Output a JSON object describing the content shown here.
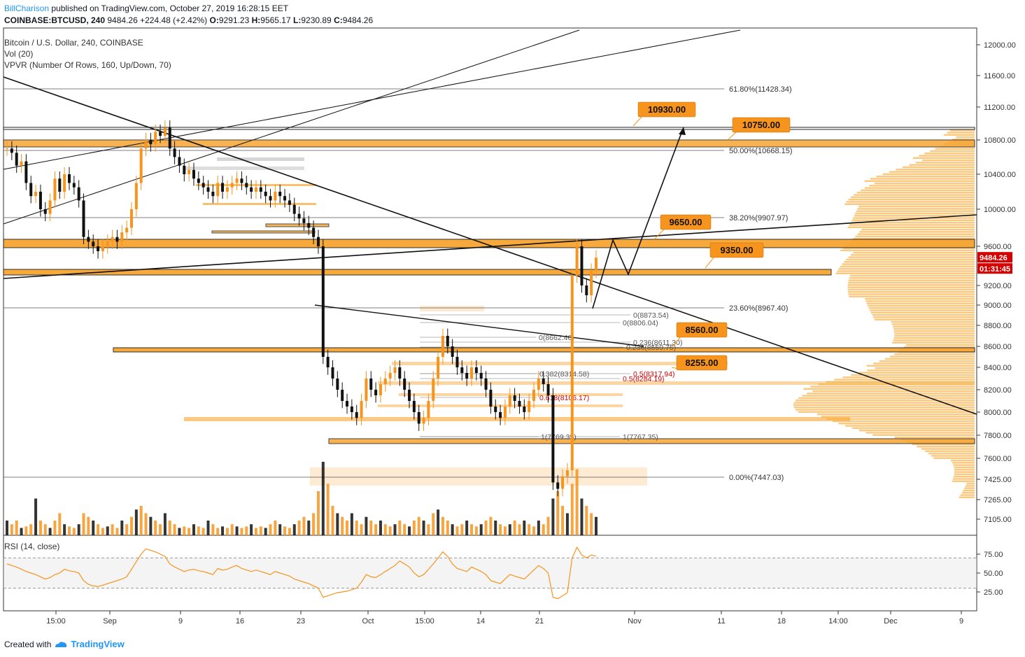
{
  "header": {
    "author": "BillCharison",
    "published": " published on TradingView.com, October 27, 2019 16:28:15 EET",
    "symbol_line": "COINBASE:BTCUSD, 240",
    "last": "9484.26",
    "change": "+224.48 (+2.42%)",
    "o_label": "O:",
    "o": "9291.23",
    "h_label": "H:",
    "h": "9565.17",
    "l_label": "L:",
    "l": "9230.89",
    "c_label": "C:",
    "c": "9484.26"
  },
  "legend": {
    "title": "Bitcoin / U.S. Dollar, 240, COINBASE",
    "vol": "Vol (20)",
    "vpvr": "VPVR (Number Of Rows, 160, Up/Down, 70)",
    "rsi": "RSI (14, close)"
  },
  "footer": {
    "created": "Created with",
    "brand": "TradingView"
  },
  "colors": {
    "accent": "#f7941d",
    "band": "#f7a531",
    "bandLight": "#fde3c0",
    "price_tag": "#d50000",
    "author": "#2196f3"
  },
  "chart_data": {
    "type": "candlestick",
    "x_ticks": [
      "15:00",
      "Sep",
      "9",
      "16",
      "23",
      "Oct",
      "15:00",
      "14",
      "21",
      "Nov",
      "11",
      "18",
      "14:00",
      "Dec",
      "9"
    ],
    "y_ticks": [
      "12000.00",
      "11600.00",
      "11200.00",
      "10800.00",
      "10400.00",
      "10000.00",
      "9600.00",
      "9200.00",
      "9000.00",
      "8800.00",
      "8600.00",
      "8400.00",
      "8200.00",
      "8000.00",
      "7800.00",
      "7600.00",
      "7425.00",
      "7265.00",
      "7105.00"
    ],
    "rsi_ticks": [
      "75.00",
      "50.00",
      "25.00"
    ],
    "current_price": "9484.26",
    "countdown": "01:31:45",
    "target_labels": [
      "10930.00",
      "10750.00",
      "9650.00",
      "9350.00",
      "8560.00",
      "8255.00"
    ],
    "fib_labels": [
      "61.80%(11428.34)",
      "50.00%(10668.15)",
      "38.20%(9907.97)",
      "23.60%(8967.40)",
      "0.00%(7447.03)"
    ],
    "small_fib_labels": [
      "0(8873.54)",
      "0(8806.04)",
      "0(8662.40)",
      "0.236(8611.30)",
      "0.236(8559.75)",
      "0.382(8314.58)",
      "0.5(8317.94)",
      "0.5(8284.19)",
      "0.618(8106.17)",
      "1(7769.35)",
      "1(7767.35)"
    ],
    "price_axis": {
      "min": 7000,
      "max": 12200
    },
    "series": [
      {
        "name": "Close",
        "values": [
          10700,
          10650,
          10500,
          10550,
          10300,
          10150,
          10200,
          10000,
          9950,
          10100,
          10350,
          10200,
          10400,
          10300,
          10250,
          10100,
          9700,
          9650,
          9600,
          9550,
          9600,
          9650,
          9700,
          9650,
          9750,
          9800,
          10000,
          10300,
          10700,
          10800,
          10750,
          10900,
          10850,
          10950,
          10700,
          10600,
          10500,
          10400,
          10450,
          10350,
          10300,
          10250,
          10200,
          10150,
          10300,
          10200,
          10250,
          10300,
          10350,
          10300,
          10250,
          10200,
          10250,
          10200,
          10150,
          10100,
          10200,
          10150,
          10100,
          10050,
          9950,
          9900,
          9850,
          9800,
          9700,
          9600,
          8500,
          8400,
          8300,
          8200,
          8100,
          8050,
          8000,
          7950,
          8100,
          8300,
          8200,
          8150,
          8250,
          8300,
          8350,
          8400,
          8300,
          8200,
          8100,
          8000,
          7900,
          7950,
          8100,
          8300,
          8500,
          8700,
          8600,
          8500,
          8400,
          8350,
          8300,
          8400,
          8350,
          8300,
          8200,
          8050,
          8000,
          7950,
          8050,
          8150,
          8100,
          8050,
          8000,
          8100,
          8200,
          8300,
          8250,
          8150,
          7400,
          7350,
          7450,
          7500,
          9300,
          9600,
          9200,
          9100,
          9350,
          9484
        ]
      }
    ],
    "rsi": [
      62,
      60,
      58,
      55,
      52,
      50,
      48,
      45,
      42,
      44,
      48,
      50,
      55,
      53,
      52,
      50,
      40,
      35,
      33,
      32,
      34,
      36,
      38,
      40,
      42,
      45,
      55,
      65,
      75,
      82,
      80,
      78,
      75,
      72,
      62,
      58,
      55,
      52,
      54,
      55,
      53,
      52,
      50,
      48,
      56,
      54,
      55,
      58,
      60,
      56,
      54,
      52,
      54,
      52,
      50,
      48,
      52,
      50,
      48,
      46,
      42,
      40,
      38,
      36,
      33,
      30,
      18,
      20,
      22,
      24,
      25,
      26,
      28,
      30,
      38,
      48,
      45,
      44,
      48,
      52,
      56,
      60,
      66,
      62,
      58,
      50,
      45,
      48,
      55,
      62,
      70,
      78,
      72,
      62,
      56,
      54,
      52,
      58,
      55,
      52,
      48,
      40,
      38,
      36,
      42,
      48,
      46,
      44,
      42,
      48,
      54,
      60,
      56,
      50,
      18,
      16,
      20,
      24,
      70,
      84,
      74,
      70,
      74,
      72
    ],
    "volume": [
      0.2,
      0.15,
      0.2,
      0.1,
      0.12,
      0.15,
      0.5,
      0.2,
      0.15,
      0.1,
      0.2,
      0.3,
      0.15,
      0.12,
      0.1,
      0.15,
      0.3,
      0.25,
      0.2,
      0.15,
      0.1,
      0.12,
      0.15,
      0.1,
      0.2,
      0.15,
      0.25,
      0.35,
      0.4,
      0.3,
      0.25,
      0.2,
      0.15,
      0.3,
      0.2,
      0.15,
      0.1,
      0.12,
      0.1,
      0.15,
      0.12,
      0.1,
      0.2,
      0.15,
      0.1,
      0.12,
      0.1,
      0.15,
      0.12,
      0.1,
      0.12,
      0.15,
      0.1,
      0.12,
      0.1,
      0.15,
      0.2,
      0.15,
      0.12,
      0.1,
      0.15,
      0.2,
      0.25,
      0.2,
      0.3,
      0.6,
      1.0,
      0.7,
      0.4,
      0.3,
      0.25,
      0.2,
      0.3,
      0.2,
      0.15,
      0.25,
      0.2,
      0.15,
      0.2,
      0.15,
      0.12,
      0.15,
      0.2,
      0.15,
      0.12,
      0.2,
      0.25,
      0.2,
      0.15,
      0.3,
      0.35,
      0.25,
      0.2,
      0.15,
      0.12,
      0.15,
      0.2,
      0.15,
      0.12,
      0.15,
      0.2,
      0.25,
      0.2,
      0.15,
      0.12,
      0.15,
      0.2,
      0.15,
      0.2,
      0.15,
      0.12,
      0.2,
      0.15,
      0.25,
      0.5,
      0.6,
      0.4,
      0.3,
      0.7,
      0.9,
      0.5,
      0.4,
      0.3,
      0.25
    ]
  }
}
